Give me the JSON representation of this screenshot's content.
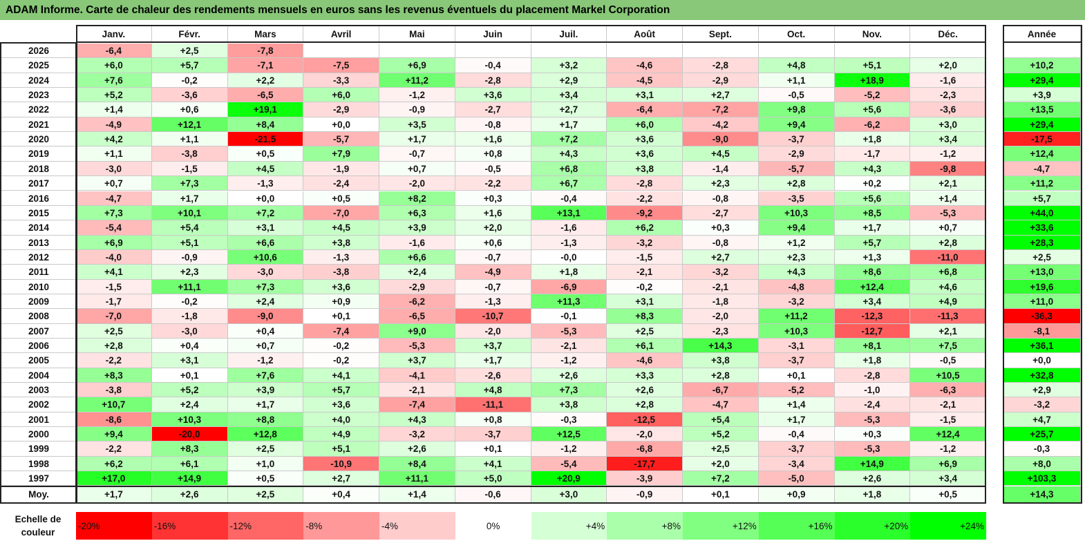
{
  "title": "ADAM Informe. Carte de chaleur des rendements mensuels en euros sans les revenus éventuels du placement Markel Corporation",
  "chart_data": {
    "type": "heatmap",
    "title": "ADAM Informe. Carte de chaleur des rendements mensuels en euros sans les revenus éventuels du placement Markel Corporation",
    "columns": [
      "Janv.",
      "Févr.",
      "Mars",
      "Avril",
      "Mai",
      "Juin",
      "Juil.",
      "Août",
      "Sept.",
      "Oct.",
      "Nov.",
      "Déc."
    ],
    "annual_header": "Année",
    "rows": [
      {
        "year": "2026",
        "values": [
          "-6,4",
          "+2,5",
          "-7,8",
          "",
          "",
          "",
          "",
          "",
          "",
          "",
          "",
          ""
        ],
        "annual": ""
      },
      {
        "year": "2025",
        "values": [
          "+6,0",
          "+5,7",
          "-7,1",
          "-7,5",
          "+6,9",
          "-0,4",
          "+3,2",
          "-4,6",
          "-2,8",
          "+4,8",
          "+5,1",
          "+2,0"
        ],
        "annual": "+10,2"
      },
      {
        "year": "2024",
        "values": [
          "+7,6",
          "-0,2",
          "+2,2",
          "-3,3",
          "+11,2",
          "-2,8",
          "+2,9",
          "-4,5",
          "-2,9",
          "+1,1",
          "+18,9",
          "-1,6"
        ],
        "annual": "+29,4"
      },
      {
        "year": "2023",
        "values": [
          "+5,2",
          "-3,6",
          "-6,5",
          "+6,0",
          "-1,2",
          "+3,6",
          "+3,4",
          "+3,1",
          "+2,7",
          "-0,5",
          "-5,2",
          "-2,3"
        ],
        "annual": "+3,9"
      },
      {
        "year": "2022",
        "values": [
          "+1,4",
          "+0,6",
          "+19,1",
          "-2,9",
          "-0,9",
          "-2,7",
          "+2,7",
          "-6,4",
          "-7,2",
          "+9,8",
          "+5,6",
          "-3,6"
        ],
        "annual": "+13,5"
      },
      {
        "year": "2021",
        "values": [
          "-4,9",
          "+12,1",
          "+8,4",
          "+0,0",
          "+3,5",
          "-0,8",
          "+1,7",
          "+6,0",
          "-4,2",
          "+9,4",
          "-6,2",
          "+3,0"
        ],
        "annual": "+29,4"
      },
      {
        "year": "2020",
        "values": [
          "+4,2",
          "+1,1",
          "-21,5",
          "-5,7",
          "+1,7",
          "+1,6",
          "+7,2",
          "+3,6",
          "-9,0",
          "-3,7",
          "+1,8",
          "+3,4"
        ],
        "annual": "-17,5"
      },
      {
        "year": "2019",
        "values": [
          "+1,1",
          "-3,8",
          "+0,5",
          "+7,9",
          "-0,7",
          "+0,8",
          "+4,3",
          "+3,6",
          "+4,5",
          "-2,9",
          "-1,7",
          "-1,2"
        ],
        "annual": "+12,4"
      },
      {
        "year": "2018",
        "values": [
          "-3,0",
          "-1,5",
          "+4,5",
          "-1,9",
          "+0,7",
          "-0,5",
          "+6,8",
          "+3,8",
          "-1,4",
          "-5,7",
          "+4,3",
          "-9,8"
        ],
        "annual": "-4,7"
      },
      {
        "year": "2017",
        "values": [
          "+0,7",
          "+7,3",
          "-1,3",
          "-2,4",
          "-2,0",
          "-2,2",
          "+6,7",
          "-2,8",
          "+2,3",
          "+2,8",
          "+0,2",
          "+2,1"
        ],
        "annual": "+11,2"
      },
      {
        "year": "2016",
        "values": [
          "-4,7",
          "+1,7",
          "+0,0",
          "+0,5",
          "+8,2",
          "+0,3",
          "-0,4",
          "-2,2",
          "-0,8",
          "-3,5",
          "+5,6",
          "+1,4"
        ],
        "annual": "+5,7"
      },
      {
        "year": "2015",
        "values": [
          "+7,3",
          "+10,1",
          "+7,2",
          "-7,0",
          "+6,3",
          "+1,6",
          "+13,1",
          "-9,2",
          "-2,7",
          "+10,3",
          "+8,5",
          "-5,3"
        ],
        "annual": "+44,0"
      },
      {
        "year": "2014",
        "values": [
          "-5,4",
          "+5,4",
          "+3,1",
          "+4,5",
          "+3,9",
          "+2,0",
          "-1,6",
          "+6,2",
          "+0,3",
          "+9,4",
          "+1,7",
          "+0,7"
        ],
        "annual": "+33,6"
      },
      {
        "year": "2013",
        "values": [
          "+6,9",
          "+5,1",
          "+6,6",
          "+3,8",
          "-1,6",
          "+0,6",
          "-1,3",
          "-3,2",
          "-0,8",
          "+1,2",
          "+5,7",
          "+2,8"
        ],
        "annual": "+28,3"
      },
      {
        "year": "2012",
        "values": [
          "-4,0",
          "-0,9",
          "+10,6",
          "-1,3",
          "+6,6",
          "-0,7",
          "-0,0",
          "-1,5",
          "+2,7",
          "+2,3",
          "+1,3",
          "-11,0"
        ],
        "annual": "+2,5"
      },
      {
        "year": "2011",
        "values": [
          "+4,1",
          "+2,3",
          "-3,0",
          "-3,8",
          "+2,4",
          "-4,9",
          "+1,8",
          "-2,1",
          "-3,2",
          "+4,3",
          "+8,6",
          "+6,8"
        ],
        "annual": "+13,0"
      },
      {
        "year": "2010",
        "values": [
          "-1,5",
          "+11,1",
          "+7,3",
          "+3,6",
          "-2,9",
          "-0,7",
          "-6,9",
          "-0,2",
          "-2,1",
          "-4,8",
          "+12,4",
          "+4,6"
        ],
        "annual": "+19,6"
      },
      {
        "year": "2009",
        "values": [
          "-1,7",
          "-0,2",
          "+2,4",
          "+0,9",
          "-6,2",
          "-1,3",
          "+11,3",
          "+3,1",
          "-1,8",
          "-3,2",
          "+3,4",
          "+4,9"
        ],
        "annual": "+11,0"
      },
      {
        "year": "2008",
        "values": [
          "-7,0",
          "-1,8",
          "-9,0",
          "+0,1",
          "-6,5",
          "-10,7",
          "-0,1",
          "+8,3",
          "-2,0",
          "+11,2",
          "-12,3",
          "-11,3"
        ],
        "annual": "-36,3"
      },
      {
        "year": "2007",
        "values": [
          "+2,5",
          "-3,0",
          "+0,4",
          "-7,4",
          "+9,0",
          "-2,0",
          "-5,3",
          "+2,5",
          "-2,3",
          "+10,3",
          "-12,7",
          "+2,1"
        ],
        "annual": "-8,1"
      },
      {
        "year": "2006",
        "values": [
          "+2,8",
          "+0,4",
          "+0,7",
          "-0,2",
          "-5,3",
          "+3,7",
          "-2,1",
          "+6,1",
          "+14,3",
          "-3,1",
          "+8,1",
          "+7,5"
        ],
        "annual": "+36,1"
      },
      {
        "year": "2005",
        "values": [
          "-2,2",
          "+3,1",
          "-1,2",
          "-0,2",
          "+3,7",
          "+1,7",
          "-1,2",
          "-4,6",
          "+3,8",
          "-3,7",
          "+1,8",
          "-0,5"
        ],
        "annual": "+0,0"
      },
      {
        "year": "2004",
        "values": [
          "+8,3",
          "+0,1",
          "+7,6",
          "+4,1",
          "-4,1",
          "-2,6",
          "+2,6",
          "+3,3",
          "+2,8",
          "+0,1",
          "-2,8",
          "+10,5"
        ],
        "annual": "+32,8"
      },
      {
        "year": "2003",
        "values": [
          "-3,8",
          "+5,2",
          "+3,9",
          "+5,7",
          "-2,1",
          "+4,8",
          "+7,3",
          "+2,6",
          "-6,7",
          "-5,2",
          "-1,0",
          "-6,3"
        ],
        "annual": "+2,9"
      },
      {
        "year": "2002",
        "values": [
          "+10,7",
          "+2,4",
          "+1,7",
          "+3,6",
          "-7,4",
          "-11,1",
          "+3,8",
          "+2,8",
          "-4,7",
          "+1,4",
          "-2,4",
          "-2,1"
        ],
        "annual": "-3,2"
      },
      {
        "year": "2001",
        "values": [
          "-8,6",
          "+10,3",
          "+8,8",
          "+4,0",
          "+4,3",
          "+0,8",
          "-0,3",
          "-12,5",
          "+5,4",
          "+1,7",
          "-5,3",
          "-1,5"
        ],
        "annual": "+4,7"
      },
      {
        "year": "2000",
        "values": [
          "+9,4",
          "-20,0",
          "+12,8",
          "+4,9",
          "-3,2",
          "-3,7",
          "+12,5",
          "-2,0",
          "+5,2",
          "-0,4",
          "+0,3",
          "+12,4"
        ],
        "annual": "+25,7"
      },
      {
        "year": "1999",
        "values": [
          "-2,2",
          "+8,3",
          "+2,5",
          "+5,1",
          "+2,6",
          "+0,1",
          "-1,2",
          "-6,8",
          "+2,5",
          "-3,7",
          "-5,3",
          "-1,2"
        ],
        "annual": "-0,3"
      },
      {
        "year": "1998",
        "values": [
          "+6,2",
          "+6,1",
          "+1,0",
          "-10,9",
          "+8,4",
          "+4,1",
          "-5,4",
          "-17,7",
          "+2,0",
          "-3,4",
          "+14,9",
          "+6,9"
        ],
        "annual": "+8,0"
      },
      {
        "year": "1997",
        "values": [
          "+17,0",
          "+14,9",
          "+0,5",
          "+2,7",
          "+11,1",
          "+5,0",
          "+20,9",
          "-3,9",
          "+7,2",
          "-5,0",
          "+2,6",
          "+3,4"
        ],
        "annual": "+103,3"
      }
    ],
    "average": {
      "label": "Moy.",
      "values": [
        "+1,7",
        "+2,6",
        "+2,5",
        "+0,4",
        "+1,4",
        "-0,6",
        "+3,0",
        "-0,9",
        "+0,1",
        "+0,9",
        "+1,8",
        "+0,5"
      ],
      "annual": "+14,3"
    },
    "legend": {
      "label": "Echelle de couleur",
      "steps": [
        "-20%",
        "-16%",
        "-12%",
        "-8%",
        "-4%",
        "0%",
        "+4%",
        "+8%",
        "+12%",
        "+16%",
        "+20%",
        "+24%"
      ]
    },
    "colors": {
      "negative_max": "#ff0000",
      "neutral": "#ffffff",
      "positive_max": "#00ff00",
      "title_background": "#88c878",
      "frame": "#222222"
    }
  }
}
